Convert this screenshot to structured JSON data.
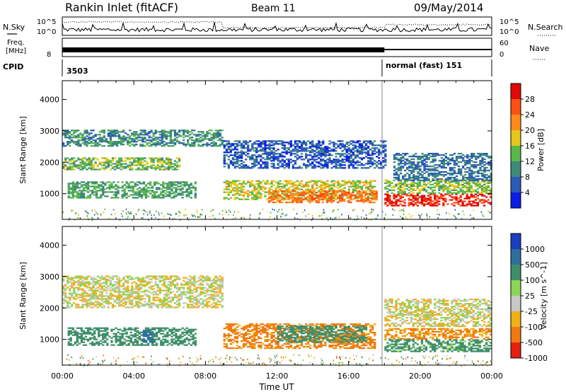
{
  "header": {
    "station": "Rankin Inlet (fitACF)",
    "beam": "Beam 11",
    "date": "09/May/2014"
  },
  "summary_panels": {
    "nsky": {
      "left_label": "N.Sky",
      "right_label": "N.Search",
      "left_ticks": [
        "10^5",
        "10^0"
      ],
      "right_ticks": [
        "10^5",
        "10^0"
      ],
      "right_legend_style": "dotted"
    },
    "freq": {
      "left_label_line1": "Freq.",
      "left_label_line2": "[MHz]",
      "left_tick": "8",
      "right_label": "Nave",
      "right_ticks": [
        "60",
        "0"
      ],
      "right_legend_style": "dotted"
    },
    "cpid": {
      "label": "CPID",
      "segments": [
        {
          "label": "3503",
          "start_hour": 0,
          "end_hour": 18
        },
        {
          "label": "normal (fast) 151",
          "start_hour": 18,
          "end_hour": 24
        }
      ]
    }
  },
  "axes": {
    "x_label": "Time UT",
    "x_ticks": [
      "00:00",
      "04:00",
      "08:00",
      "12:00",
      "16:00",
      "20:00",
      "00:00"
    ],
    "x_range_hours": [
      0,
      24
    ],
    "y_label_top": "Slant Range [km]",
    "y_label_bottom": "Slant Range [km]",
    "y_ticks": [
      "1000",
      "2000",
      "3000",
      "4000"
    ],
    "y_range_km": [
      180,
      4600
    ]
  },
  "colorbars": {
    "power": {
      "title": "Power [dB]",
      "labels": [
        "4",
        "8",
        "12",
        "16",
        "20",
        "24",
        "28"
      ],
      "colors": [
        "#0a1ee6",
        "#2a5bb8",
        "#3f8a7a",
        "#5ab84a",
        "#e6c61a",
        "#ff8a1a",
        "#ff4e14",
        "#e00808"
      ]
    },
    "velocity": {
      "title": "Velocity [m s^-1]",
      "labels": [
        "1000",
        "500",
        "100",
        "25",
        "-25",
        "-100",
        "-500",
        "-1000"
      ],
      "colors": [
        "#1a3fc0",
        "#2e6f9e",
        "#3f8f6a",
        "#8ed458",
        "#c8c8c4",
        "#f0b018",
        "#f07a10",
        "#e82010"
      ]
    }
  },
  "chart_data": {
    "type": "heatmap",
    "title": "Rankin Inlet (fitACF)",
    "subtitle": "Beam 11",
    "xlabel": "Time UT",
    "ylabel": "Slant Range [km]",
    "xlim": [
      0,
      24
    ],
    "ylim": [
      180,
      4600
    ],
    "series": [
      {
        "name": "Power",
        "unit": "dB",
        "clim": [
          0,
          32
        ],
        "features": [
          {
            "t0": 0.0,
            "t1": 9.0,
            "r0": 2500,
            "r1": 3000,
            "value": 10
          },
          {
            "t0": 0.0,
            "t1": 6.5,
            "r0": 1750,
            "r1": 2150,
            "value": 14
          },
          {
            "t0": 0.3,
            "t1": 7.5,
            "r0": 850,
            "r1": 1350,
            "value": 12
          },
          {
            "t0": 9.0,
            "t1": 17.5,
            "r0": 800,
            "r1": 1400,
            "value": 17
          },
          {
            "t0": 11.5,
            "t1": 17.5,
            "r0": 700,
            "r1": 1100,
            "value": 24
          },
          {
            "t0": 18.0,
            "t1": 24.0,
            "r0": 600,
            "r1": 1000,
            "value": 29
          },
          {
            "t0": 18.0,
            "t1": 24.0,
            "r0": 1000,
            "r1": 1450,
            "value": 15
          },
          {
            "t0": 18.5,
            "t1": 24.0,
            "r0": 1400,
            "r1": 2300,
            "value": 8
          },
          {
            "t0": 9.0,
            "t1": 18.0,
            "r0": 1800,
            "r1": 2700,
            "value": 6
          }
        ]
      },
      {
        "name": "Velocity",
        "unit": "m s^-1",
        "clim": [
          -1000,
          1000
        ],
        "features": [
          {
            "t0": 0.0,
            "t1": 9.0,
            "r0": 2000,
            "r1": 3000,
            "value": 0
          },
          {
            "t0": 0.3,
            "t1": 7.5,
            "r0": 800,
            "r1": 1350,
            "value": 200
          },
          {
            "t0": 4.5,
            "t1": 5.0,
            "r0": 900,
            "r1": 1300,
            "value": 800
          },
          {
            "t0": 9.0,
            "t1": 17.5,
            "r0": 700,
            "r1": 1500,
            "value": -150
          },
          {
            "t0": 12.0,
            "t1": 17.0,
            "r0": 900,
            "r1": 1400,
            "value": 250
          },
          {
            "t0": 18.0,
            "t1": 24.0,
            "r0": 1000,
            "r1": 1350,
            "value": -120
          },
          {
            "t0": 18.0,
            "t1": 24.0,
            "r0": 600,
            "r1": 1000,
            "value": 150
          },
          {
            "t0": 18.0,
            "t1": 24.0,
            "r0": 1400,
            "r1": 2300,
            "value": 0
          }
        ]
      }
    ]
  }
}
